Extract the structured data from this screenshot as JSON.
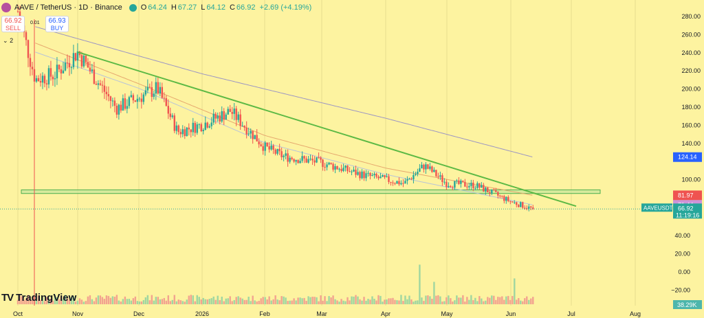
{
  "header": {
    "symbol": "AAVE / TetherUS · 1D · Binance",
    "open_label": "O",
    "open": "64.24",
    "high_label": "H",
    "high": "67.27",
    "low_label": "L",
    "low": "64.12",
    "close_label": "C",
    "close": "66.92",
    "change": "+2.69 (+4.19%)"
  },
  "trade": {
    "sell_price": "66.92",
    "sell_label": "SELL",
    "buy_price": "66.93",
    "buy_label": "BUY",
    "spread": "0.01",
    "qty_prefix": "⌄",
    "qty": "2"
  },
  "branding": {
    "mark": "TV",
    "name": "TradingView"
  },
  "colors": {
    "background": "#fdf3a0",
    "up": "#26a69a",
    "down": "#ef5350",
    "trend": "#5cb944",
    "ma200": "#9a94c4",
    "ma50": "#e6a86e",
    "ma20": "#b8c4d8",
    "support_zone": "#c8e79a"
  },
  "chart_data": {
    "type": "candlestick",
    "symbol": "AAVEUSDT",
    "price_axis": {
      "ticks": [
        280,
        260,
        240,
        220,
        200,
        180,
        160,
        140,
        100
      ],
      "range": [
        58,
        290
      ]
    },
    "volume_axis": {
      "ticks": [
        "40.00",
        "20.00",
        "0.00",
        "−20.00"
      ]
    },
    "x_axis": {
      "labels": [
        "Oct",
        "Nov",
        "Dec",
        "2026",
        "Feb",
        "Mar",
        "Apr",
        "May",
        "Jun",
        "Jul",
        "Aug"
      ]
    },
    "price_labels": [
      {
        "value": "124.14",
        "price": 124.14,
        "color": "#2962ff"
      },
      {
        "value": "81.97",
        "price": 81.97,
        "color": "#ef5350"
      },
      {
        "value": "71.44",
        "price": 71.44,
        "color": "#ce93d8"
      }
    ],
    "symbol_label": "AAVEUSDT",
    "last_price": {
      "value": "66.92",
      "price": 66.92,
      "countdown": "11:19:16",
      "color": "#26a69a"
    },
    "volume_label": "38.29K",
    "trendline": {
      "start": {
        "date": "Nov 1",
        "price": 240
      },
      "end": {
        "date": "Jul 1",
        "price": 70
      }
    },
    "support_zone": {
      "low": 84,
      "high": 88,
      "start": "Oct 1",
      "end": "Aug 4"
    },
    "candles_ohlc_checkpoints": [
      {
        "date": "Oct 1",
        "close": 285
      },
      {
        "date": "Oct 10",
        "close": 210
      },
      {
        "date": "Oct 20",
        "close": 215
      },
      {
        "date": "Nov 1",
        "close": 240
      },
      {
        "date": "Nov 10",
        "close": 210
      },
      {
        "date": "Nov 20",
        "close": 178
      },
      {
        "date": "Dec 1",
        "close": 190
      },
      {
        "date": "Dec 10",
        "close": 200
      },
      {
        "date": "Dec 20",
        "close": 152
      },
      {
        "date": "Jan 1",
        "close": 160
      },
      {
        "date": "Jan 15",
        "close": 175
      },
      {
        "date": "Feb 1",
        "close": 135
      },
      {
        "date": "Feb 10",
        "close": 125
      },
      {
        "date": "Mar 1",
        "close": 118
      },
      {
        "date": "Mar 20",
        "close": 105
      },
      {
        "date": "Apr 10",
        "close": 95
      },
      {
        "date": "Apr 20",
        "close": 115
      },
      {
        "date": "May 1",
        "close": 95
      },
      {
        "date": "May 15",
        "close": 93
      },
      {
        "date": "Jun 1",
        "close": 75
      },
      {
        "date": "Jun 12",
        "close": 66.92
      }
    ],
    "ma200_checkpoints": [
      {
        "date": "Oct 10",
        "value": 268
      },
      {
        "date": "Jan 1",
        "value": 216
      },
      {
        "date": "Apr 1",
        "value": 167
      },
      {
        "date": "Jun 12",
        "value": 124.14
      }
    ],
    "ma50_checkpoints": [
      {
        "date": "Oct 10",
        "value": 250
      },
      {
        "date": "Dec 1",
        "value": 205
      },
      {
        "date": "Feb 1",
        "value": 148
      },
      {
        "date": "Apr 1",
        "value": 112
      },
      {
        "date": "Jun 12",
        "value": 81.97
      }
    ],
    "ma20_checkpoints": [
      {
        "date": "Oct 10",
        "value": 240
      },
      {
        "date": "Dec 1",
        "value": 200
      },
      {
        "date": "Feb 1",
        "value": 140
      },
      {
        "date": "Apr 1",
        "value": 105
      },
      {
        "date": "Jun 12",
        "value": 71.44
      }
    ],
    "volume_spikes": [
      {
        "date": "Oct 10",
        "value": 9
      },
      {
        "date": "Apr 18",
        "value": 46
      },
      {
        "date": "Apr 25",
        "value": 26
      },
      {
        "date": "Jun 3",
        "value": 30
      }
    ]
  }
}
